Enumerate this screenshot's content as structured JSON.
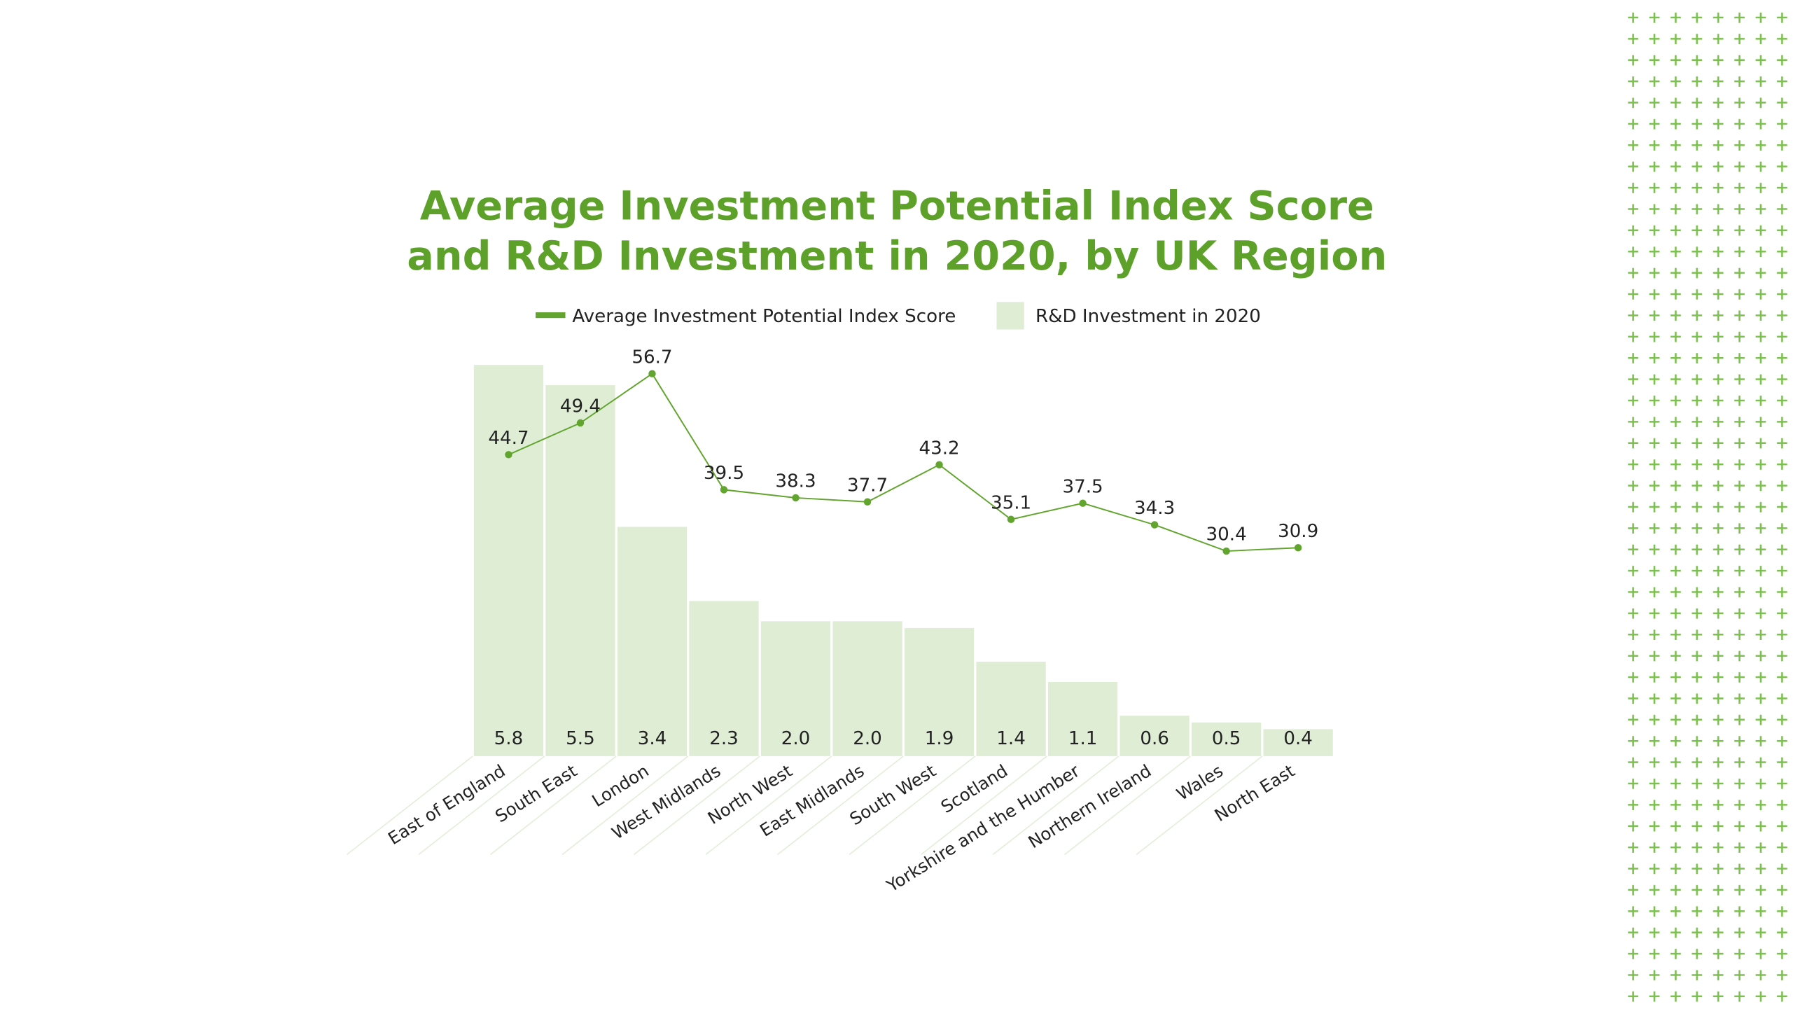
{
  "chart_data": {
    "type": "bar",
    "title": "Average Investment Potential Index Score and R&D Investment in 2020, by UK Region",
    "categories": [
      "East of England",
      "South East",
      "London",
      "West Midlands",
      "North West",
      "East Midlands",
      "South West",
      "Scotland",
      "Yorkshire and the Humber",
      "Northern Ireland",
      "Wales",
      "North East"
    ],
    "series": [
      {
        "name": "R&D Investment in 2020",
        "type": "bar",
        "color": "#dfedd5",
        "values": [
          5.8,
          5.5,
          3.4,
          2.3,
          2.0,
          2.0,
          1.9,
          1.4,
          1.1,
          0.6,
          0.5,
          0.4
        ],
        "value_labels": [
          "5.8",
          "5.5",
          "3.4",
          "2.3",
          "2.0",
          "2.0",
          "1.9",
          "1.4",
          "1.1",
          "0.6",
          "0.5",
          "0.4"
        ]
      },
      {
        "name": "Average Investment Potential Index Score",
        "type": "line",
        "axis": "y2",
        "color": "#62a52e",
        "values": [
          44.7,
          49.4,
          56.7,
          39.5,
          38.3,
          37.7,
          43.2,
          35.1,
          37.5,
          34.3,
          30.4,
          30.9
        ]
      }
    ],
    "ylim": [
      0,
      5.8
    ],
    "y2lim": [
      0,
      58
    ],
    "grid": false
  }
}
